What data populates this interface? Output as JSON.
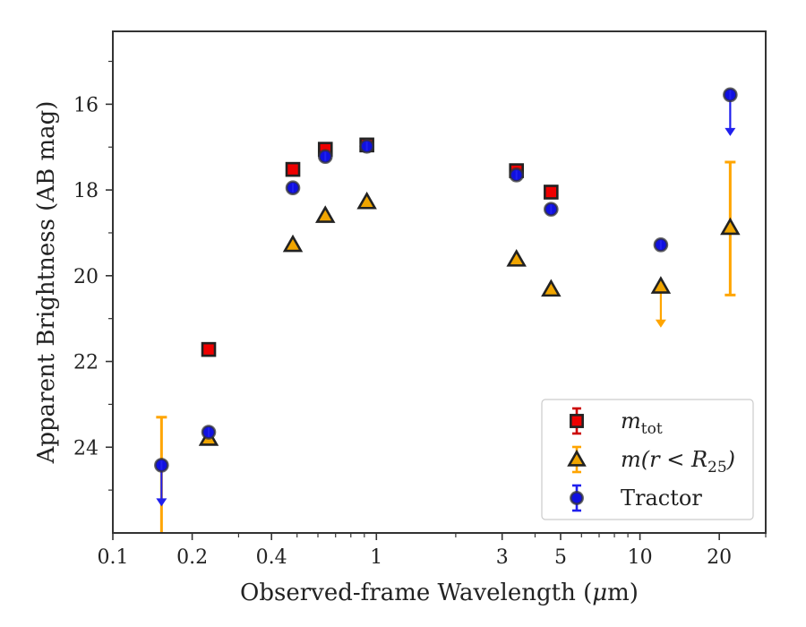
{
  "chart_data": {
    "type": "scatter",
    "xlabel_main": "Observed-frame Wavelength (",
    "xlabel_mu": "μ",
    "xlabel_tail": "m)",
    "ylabel": "Apparent Brightness (AB mag)",
    "xscale": "log",
    "xlim": [
      0.1,
      30
    ],
    "ylim": [
      26,
      14.3
    ],
    "y_inverted": true,
    "grid": false,
    "legend_position": "lower-right",
    "x_ticks": [
      0.1,
      0.2,
      0.4,
      1,
      3,
      5,
      10,
      20
    ],
    "x_tick_labels": [
      "0.1",
      "0.2",
      "0.4",
      "1",
      "3",
      "5",
      "10",
      "20"
    ],
    "x_minor_ticks": [
      0.3,
      0.5,
      0.6,
      0.7,
      0.8,
      0.9,
      2,
      4,
      6,
      7,
      8,
      9,
      30
    ],
    "y_ticks": [
      16,
      18,
      20,
      22,
      24
    ],
    "y_tick_labels": [
      "16",
      "18",
      "20",
      "22",
      "24"
    ],
    "y_minor_ticks": [
      15,
      17,
      19,
      21,
      23,
      25
    ],
    "series": [
      {
        "name_main": "m",
        "name_sub": "tot",
        "marker": "square",
        "color": "#ee0000",
        "errcolor": "#cc0000",
        "points": [
          {
            "x": 0.231,
            "y": 21.72
          },
          {
            "x": 0.482,
            "y": 17.52
          },
          {
            "x": 0.64,
            "y": 17.05
          },
          {
            "x": 0.92,
            "y": 16.95
          },
          {
            "x": 3.4,
            "y": 17.55
          },
          {
            "x": 4.6,
            "y": 18.05
          }
        ]
      },
      {
        "name_main": "m(r < R",
        "name_sub": "25",
        "name_tail": ")",
        "marker": "triangle",
        "color": "#f0a500",
        "errcolor": "#ffa500",
        "points": [
          {
            "x": 0.231,
            "y": 23.8
          },
          {
            "x": 0.482,
            "y": 19.28
          },
          {
            "x": 0.64,
            "y": 18.6
          },
          {
            "x": 0.92,
            "y": 18.28
          },
          {
            "x": 3.4,
            "y": 19.62
          },
          {
            "x": 4.6,
            "y": 20.32
          },
          {
            "x": 12.0,
            "y": 20.25,
            "upper_limit": true
          },
          {
            "x": 22.0,
            "y": 18.88,
            "err_low": 17.35,
            "err_high": 20.45
          }
        ]
      },
      {
        "name_main": "Tractor",
        "marker": "circle",
        "color": "#1010e0",
        "errcolor": "#2020ee",
        "points": [
          {
            "x": 0.153,
            "y": 24.42,
            "upper_limit": true,
            "orange_bar": [
              23.3,
              26
            ]
          },
          {
            "x": 0.231,
            "y": 23.65
          },
          {
            "x": 0.482,
            "y": 17.95
          },
          {
            "x": 0.64,
            "y": 17.22
          },
          {
            "x": 0.92,
            "y": 16.98
          },
          {
            "x": 3.4,
            "y": 17.65
          },
          {
            "x": 4.6,
            "y": 18.45
          },
          {
            "x": 12.0,
            "y": 19.28
          },
          {
            "x": 22.0,
            "y": 15.78,
            "upper_limit": true
          }
        ]
      }
    ]
  }
}
